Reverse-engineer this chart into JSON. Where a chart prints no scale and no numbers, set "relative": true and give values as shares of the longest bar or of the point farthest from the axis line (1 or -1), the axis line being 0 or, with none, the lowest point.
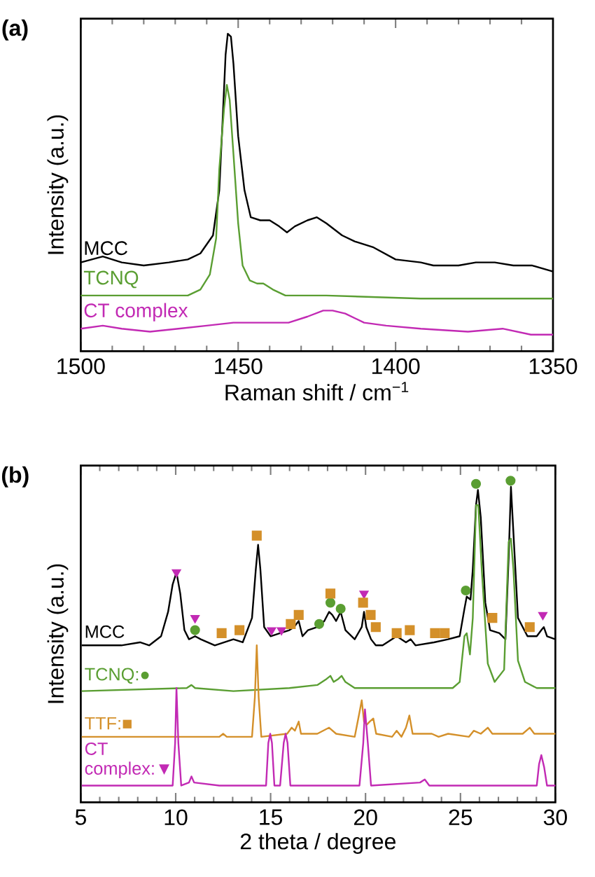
{
  "chart_data": [
    {
      "type": "line",
      "relative": true,
      "xlabel": "Raman shift / cm$^{−1}$",
      "ylabel": "Intensity (a.u.)",
      "annotations": [
        "(a)"
      ],
      "xlim": [
        1500,
        1350
      ],
      "xticks": [
        1500,
        1450,
        1400,
        1350
      ],
      "series": [
        {
          "name": "MCC",
          "color": "#000000",
          "x": [
            1500,
            1493,
            1487,
            1480,
            1472,
            1466,
            1462,
            1458,
            1456,
            1455,
            1454,
            1453.3,
            1452.3,
            1451.5,
            1450,
            1448,
            1446,
            1443,
            1440,
            1437,
            1434.5,
            1432,
            1428,
            1425,
            1422,
            1417,
            1413,
            1407,
            1400,
            1392,
            1388,
            1380,
            1374.5,
            1368.5,
            1362.6,
            1356.7,
            1350
          ],
          "values": [
            0.24,
            0.26,
            0.24,
            0.23,
            0.24,
            0.25,
            0.27,
            0.33,
            0.48,
            0.7,
            0.93,
            1.0,
            0.99,
            0.9,
            0.66,
            0.48,
            0.39,
            0.38,
            0.38,
            0.36,
            0.34,
            0.36,
            0.38,
            0.39,
            0.37,
            0.33,
            0.31,
            0.29,
            0.25,
            0.24,
            0.23,
            0.23,
            0.24,
            0.24,
            0.23,
            0.23,
            0.21
          ]
        },
        {
          "name": "TCNQ",
          "color": "#5a9e32",
          "x": [
            1500,
            1481,
            1466,
            1462,
            1459,
            1457,
            1456,
            1454.5,
            1453.6,
            1452.7,
            1451.5,
            1450,
            1448.6,
            1446.3,
            1444,
            1442,
            1439,
            1435,
            1422,
            1392,
            1350
          ],
          "values": [
            0.13,
            0.13,
            0.13,
            0.15,
            0.2,
            0.32,
            0.55,
            0.75,
            0.83,
            0.78,
            0.6,
            0.37,
            0.23,
            0.18,
            0.17,
            0.17,
            0.15,
            0.13,
            0.13,
            0.12,
            0.12
          ]
        },
        {
          "name": "CT complex",
          "color": "#c22ab4",
          "x": [
            1500,
            1493,
            1487,
            1478,
            1469,
            1460,
            1451.5,
            1443,
            1434,
            1428,
            1423,
            1420,
            1416,
            1410,
            1403,
            1392,
            1377,
            1366,
            1357,
            1350
          ],
          "values": [
            0.02,
            0.03,
            0.02,
            0.01,
            0.02,
            0.03,
            0.04,
            0.04,
            0.04,
            0.06,
            0.08,
            0.08,
            0.07,
            0.04,
            0.03,
            0.02,
            0.01,
            0.02,
            0.0,
            0.0
          ]
        }
      ]
    },
    {
      "type": "line",
      "relative": true,
      "xlabel": "2 theta / degree",
      "ylabel": "Intensity (a.u.)",
      "annotations": [
        "(b)"
      ],
      "xlim": [
        5,
        30
      ],
      "xticks": [
        5,
        10,
        15,
        20,
        25,
        30
      ],
      "series": [
        {
          "name": "MCC",
          "color": "#000000",
          "x": [
            5.05,
            6.4,
            7.14,
            8.12,
            8.61,
            9.23,
            9.6,
            9.84,
            10.04,
            10.24,
            10.46,
            10.7,
            11.02,
            11.32,
            12.06,
            13.04,
            13.53,
            14.02,
            14.22,
            14.34,
            14.46,
            14.66,
            15.0,
            15.5,
            15.99,
            16.23,
            16.48,
            16.68,
            16.97,
            17.46,
            17.83,
            18.08,
            18.25,
            18.45,
            18.69,
            18.94,
            19.43,
            19.8,
            19.92,
            20.04,
            20.29,
            20.54,
            20.9,
            21.64,
            22.13,
            22.38,
            22.63,
            23.61,
            24.35,
            24.96,
            25.21,
            25.33,
            25.53,
            25.65,
            25.82,
            25.92,
            26.07,
            26.31,
            26.56,
            27.05,
            27.37,
            27.54,
            27.66,
            27.79,
            28.03,
            28.53,
            29.02,
            29.26,
            29.39,
            29.56,
            30.0
          ],
          "values": [
            0.46,
            0.46,
            0.46,
            0.47,
            0.46,
            0.49,
            0.57,
            0.66,
            0.7,
            0.63,
            0.51,
            0.48,
            0.49,
            0.48,
            0.46,
            0.48,
            0.47,
            0.55,
            0.71,
            0.79,
            0.71,
            0.52,
            0.49,
            0.5,
            0.51,
            0.52,
            0.54,
            0.49,
            0.51,
            0.52,
            0.54,
            0.57,
            0.56,
            0.54,
            0.57,
            0.51,
            0.48,
            0.52,
            0.57,
            0.52,
            0.48,
            0.46,
            0.46,
            0.49,
            0.47,
            0.48,
            0.46,
            0.47,
            0.48,
            0.49,
            0.58,
            0.62,
            0.61,
            0.71,
            0.92,
            0.97,
            0.88,
            0.6,
            0.51,
            0.5,
            0.48,
            0.75,
            0.98,
            0.83,
            0.55,
            0.49,
            0.49,
            0.51,
            0.52,
            0.49,
            0.48
          ]
        },
        {
          "name": "TCNQ:●",
          "color": "#5a9e32",
          "x": [
            5.05,
            10.58,
            10.83,
            11.02,
            13.04,
            15.99,
            17.46,
            17.95,
            18.15,
            18.32,
            18.57,
            18.74,
            18.94,
            19.43,
            22.87,
            24.59,
            24.96,
            25.21,
            25.33,
            25.5,
            25.65,
            25.82,
            25.94,
            26.12,
            26.44,
            26.8,
            27.3,
            27.54,
            27.66,
            27.79,
            28.03,
            28.4,
            29.02,
            30.0
          ],
          "values": [
            0.31,
            0.32,
            0.33,
            0.32,
            0.31,
            0.32,
            0.33,
            0.35,
            0.36,
            0.34,
            0.35,
            0.36,
            0.34,
            0.32,
            0.32,
            0.32,
            0.34,
            0.49,
            0.5,
            0.43,
            0.55,
            0.92,
            0.92,
            0.71,
            0.4,
            0.34,
            0.38,
            0.8,
            0.81,
            0.71,
            0.41,
            0.34,
            0.32,
            0.32
          ]
        },
        {
          "name": "TTF:■",
          "color": "#d4902a",
          "x": [
            5.05,
            12.3,
            12.5,
            12.69,
            14.02,
            14.17,
            14.27,
            14.37,
            14.51,
            15.87,
            16.11,
            16.28,
            16.48,
            16.6,
            17.46,
            18.08,
            18.45,
            19.43,
            19.68,
            19.8,
            19.92,
            20.07,
            20.22,
            20.41,
            20.56,
            21.4,
            21.64,
            21.89,
            22.13,
            22.31,
            22.48,
            23.49,
            23.85,
            24.35,
            25.45,
            25.7,
            26.07,
            26.44,
            26.68,
            28.28,
            28.65,
            28.89,
            30.0
          ],
          "values": [
            0.16,
            0.16,
            0.17,
            0.16,
            0.16,
            0.29,
            0.46,
            0.29,
            0.16,
            0.17,
            0.19,
            0.18,
            0.21,
            0.17,
            0.17,
            0.19,
            0.17,
            0.16,
            0.24,
            0.28,
            0.21,
            0.2,
            0.21,
            0.22,
            0.17,
            0.16,
            0.18,
            0.16,
            0.19,
            0.23,
            0.17,
            0.17,
            0.16,
            0.17,
            0.16,
            0.18,
            0.17,
            0.19,
            0.17,
            0.17,
            0.19,
            0.17,
            0.17
          ]
        },
        {
          "name": "CT complex:▼",
          "color": "#c22ab4",
          "x": [
            5.05,
            9.84,
            9.97,
            10.04,
            10.14,
            10.29,
            10.7,
            10.83,
            10.97,
            12.3,
            14.76,
            14.88,
            14.98,
            15.07,
            15.2,
            15.5,
            15.69,
            15.79,
            15.89,
            16.04,
            19.68,
            19.88,
            19.97,
            20.12,
            20.29,
            22.87,
            23.12,
            23.36,
            29.02,
            29.14,
            29.26,
            29.41,
            29.56,
            30.0
          ],
          "values": [
            0.0,
            0.0,
            0.14,
            0.32,
            0.14,
            0.0,
            0.01,
            0.03,
            0.01,
            0.0,
            0.0,
            0.14,
            0.17,
            0.14,
            0.0,
            0.0,
            0.14,
            0.17,
            0.14,
            0.0,
            0.0,
            0.14,
            0.25,
            0.14,
            0.0,
            0.01,
            0.02,
            0.0,
            0.0,
            0.07,
            0.1,
            0.06,
            0.0,
            0.0
          ]
        },
        {
          "type": "scatter",
          "marker": "triangle",
          "color": "#c22ab4",
          "x": [
            10.04,
            11.02,
            15.05,
            15.57,
            19.92,
            29.34
          ],
          "values": [
            0.7,
            0.55,
            0.51,
            0.51,
            0.63,
            0.56
          ]
        },
        {
          "type": "scatter",
          "marker": "circle",
          "color": "#5a9e32",
          "x": [
            11.02,
            17.56,
            18.15,
            18.69,
            25.28,
            25.82,
            27.64
          ],
          "values": [
            0.51,
            0.53,
            0.6,
            0.58,
            0.64,
            0.99,
            1.0
          ]
        },
        {
          "type": "scatter",
          "marker": "square",
          "color": "#d4902a",
          "x": [
            12.42,
            13.36,
            14.27,
            16.06,
            16.48,
            18.15,
            19.87,
            20.27,
            20.54,
            21.64,
            22.33,
            23.66,
            24.17,
            26.68,
            28.65
          ],
          "values": [
            0.5,
            0.51,
            0.82,
            0.53,
            0.56,
            0.63,
            0.6,
            0.56,
            0.52,
            0.5,
            0.51,
            0.5,
            0.5,
            0.55,
            0.52
          ]
        }
      ]
    }
  ]
}
